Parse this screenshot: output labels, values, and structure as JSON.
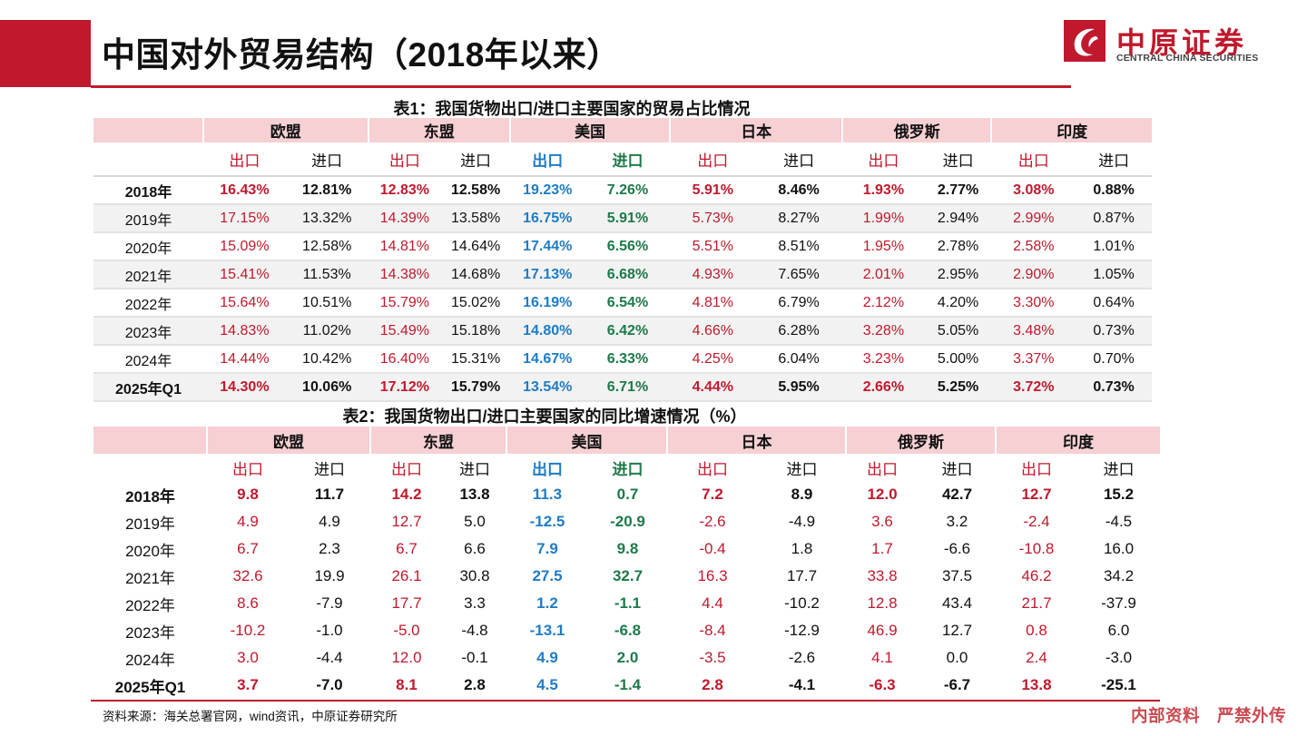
{
  "title": "中国对外贸易结构（2018年以来）",
  "logo": {
    "cn": "中原证券",
    "en": "CENTRAL CHINA SECURITIES"
  },
  "colors": {
    "brand_red": "#c0192d",
    "export_red": "#c0192d",
    "us_export_blue": "#1f7cc4",
    "us_import_green": "#1d7a4a",
    "header_pink": "#f6d0d3"
  },
  "table1": {
    "caption": "表1：我国货物出口/进口主要国家的贸易占比情况",
    "regions": [
      "欧盟",
      "东盟",
      "美国",
      "日本",
      "俄罗斯",
      "印度"
    ],
    "subheaders": [
      "出口",
      "进口",
      "出口",
      "进口",
      "出口",
      "进口",
      "出口",
      "进口",
      "出口",
      "进口",
      "出口",
      "进口"
    ],
    "rows": [
      {
        "year": "2018年",
        "values": [
          "16.43%",
          "12.81%",
          "12.83%",
          "12.58%",
          "19.23%",
          "7.26%",
          "5.91%",
          "8.46%",
          "1.93%",
          "2.77%",
          "3.08%",
          "0.88%"
        ]
      },
      {
        "year": "2019年",
        "values": [
          "17.15%",
          "13.32%",
          "14.39%",
          "13.58%",
          "16.75%",
          "5.91%",
          "5.73%",
          "8.27%",
          "1.99%",
          "2.94%",
          "2.99%",
          "0.87%"
        ]
      },
      {
        "year": "2020年",
        "values": [
          "15.09%",
          "12.58%",
          "14.81%",
          "14.64%",
          "17.44%",
          "6.56%",
          "5.51%",
          "8.51%",
          "1.95%",
          "2.78%",
          "2.58%",
          "1.01%"
        ]
      },
      {
        "year": "2021年",
        "values": [
          "15.41%",
          "11.53%",
          "14.38%",
          "14.68%",
          "17.13%",
          "6.68%",
          "4.93%",
          "7.65%",
          "2.01%",
          "2.95%",
          "2.90%",
          "1.05%"
        ]
      },
      {
        "year": "2022年",
        "values": [
          "15.64%",
          "10.51%",
          "15.79%",
          "15.02%",
          "16.19%",
          "6.54%",
          "4.81%",
          "6.79%",
          "2.12%",
          "4.20%",
          "3.30%",
          "0.64%"
        ]
      },
      {
        "year": "2023年",
        "values": [
          "14.83%",
          "11.02%",
          "15.49%",
          "15.18%",
          "14.80%",
          "6.42%",
          "4.66%",
          "6.28%",
          "3.28%",
          "5.05%",
          "3.48%",
          "0.73%"
        ]
      },
      {
        "year": "2024年",
        "values": [
          "14.44%",
          "10.42%",
          "16.40%",
          "15.31%",
          "14.67%",
          "6.33%",
          "4.25%",
          "6.04%",
          "3.23%",
          "5.00%",
          "3.37%",
          "0.70%"
        ]
      },
      {
        "year": "2025年Q1",
        "values": [
          "14.30%",
          "10.06%",
          "17.12%",
          "15.79%",
          "13.54%",
          "6.71%",
          "4.44%",
          "5.95%",
          "2.66%",
          "5.25%",
          "3.72%",
          "0.73%"
        ]
      }
    ]
  },
  "table2": {
    "caption": "表2：我国货物出口/进口主要国家的同比增速情况（%）",
    "regions": [
      "欧盟",
      "东盟",
      "美国",
      "日本",
      "俄罗斯",
      "印度"
    ],
    "subheaders": [
      "出口",
      "进口",
      "出口",
      "进口",
      "出口",
      "进口",
      "出口",
      "进口",
      "出口",
      "进口",
      "出口",
      "进口"
    ],
    "rows": [
      {
        "year": "2018年",
        "values": [
          "9.8",
          "11.7",
          "14.2",
          "13.8",
          "11.3",
          "0.7",
          "7.2",
          "8.9",
          "12.0",
          "42.7",
          "12.7",
          "15.2"
        ]
      },
      {
        "year": "2019年",
        "values": [
          "4.9",
          "4.9",
          "12.7",
          "5.0",
          "-12.5",
          "-20.9",
          "-2.6",
          "-4.9",
          "3.6",
          "3.2",
          "-2.4",
          "-4.5"
        ]
      },
      {
        "year": "2020年",
        "values": [
          "6.7",
          "2.3",
          "6.7",
          "6.6",
          "7.9",
          "9.8",
          "-0.4",
          "1.8",
          "1.7",
          "-6.6",
          "-10.8",
          "16.0"
        ]
      },
      {
        "year": "2021年",
        "values": [
          "32.6",
          "19.9",
          "26.1",
          "30.8",
          "27.5",
          "32.7",
          "16.3",
          "17.7",
          "33.8",
          "37.5",
          "46.2",
          "34.2"
        ]
      },
      {
        "year": "2022年",
        "values": [
          "8.6",
          "-7.9",
          "17.7",
          "3.3",
          "1.2",
          "-1.1",
          "4.4",
          "-10.2",
          "12.8",
          "43.4",
          "21.7",
          "-37.9"
        ]
      },
      {
        "year": "2023年",
        "values": [
          "-10.2",
          "-1.0",
          "-5.0",
          "-4.8",
          "-13.1",
          "-6.8",
          "-8.4",
          "-12.9",
          "46.9",
          "12.7",
          "0.8",
          "6.0"
        ]
      },
      {
        "year": "2024年",
        "values": [
          "3.0",
          "-4.4",
          "12.0",
          "-0.1",
          "4.9",
          "2.0",
          "-3.5",
          "-2.6",
          "4.1",
          "0.0",
          "2.4",
          "-3.0"
        ]
      },
      {
        "year": "2025年Q1",
        "values": [
          "3.7",
          "-7.0",
          "8.1",
          "2.8",
          "4.5",
          "-1.4",
          "2.8",
          "-4.1",
          "-6.3",
          "-6.7",
          "13.8",
          "-25.1"
        ]
      }
    ]
  },
  "source": "资料来源：海关总署官网，wind资讯，中原证券研究所",
  "watermark": "内部资料　严禁外传"
}
